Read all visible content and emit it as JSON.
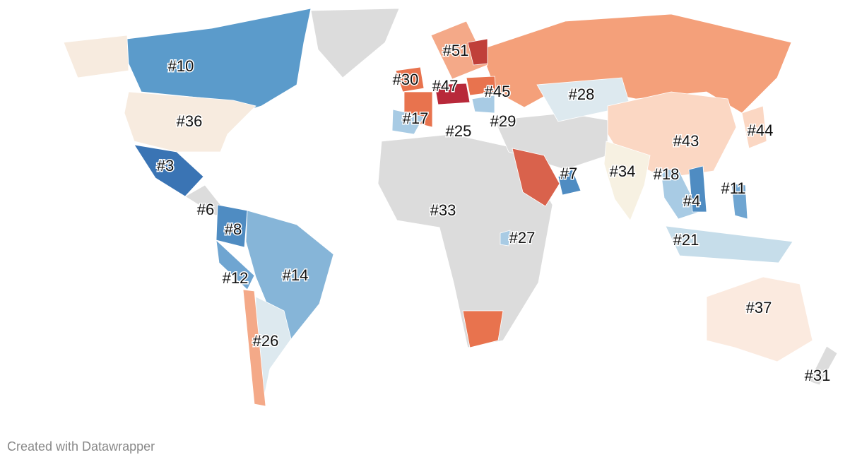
{
  "labels": [
    "#10",
    "#36",
    "#3",
    "#6",
    "#8",
    "#12",
    "#14",
    "#26",
    "#30",
    "#51",
    "#47",
    "#45",
    "#17",
    "#25",
    "#29",
    "#28",
    "#43",
    "#44",
    "#34",
    "#18",
    "#7",
    "#11",
    "#4",
    "#33",
    "#27",
    "#21",
    "#37",
    "#31"
  ],
  "footer": "Created with Datawrapper"
}
